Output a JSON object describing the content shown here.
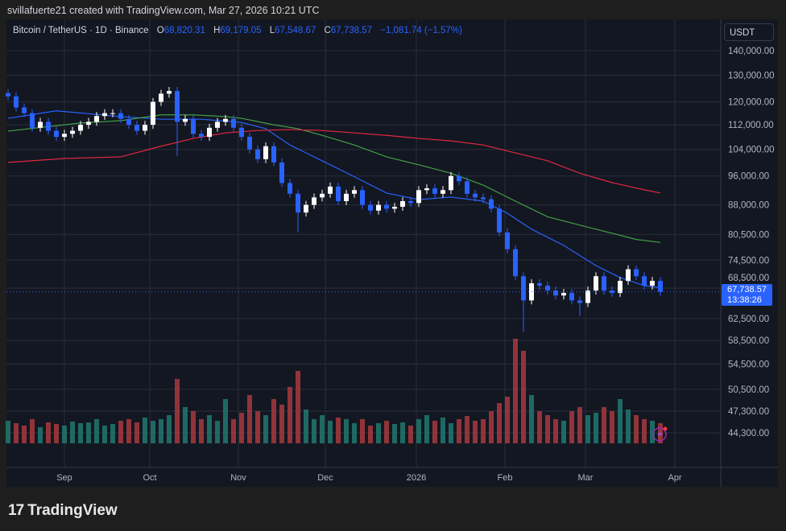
{
  "credit": "svillafuerte21 created with TradingView.com, Mar 27, 2026 10:21 UTC",
  "legend": {
    "symbol": "Bitcoin / TetherUS · 1D · Binance",
    "o_label": "O",
    "open": "68,820.31",
    "h_label": "H",
    "high": "69,179.05",
    "l_label": "L",
    "low": "67,548.67",
    "c_label": "C",
    "close": "67,738.57",
    "change": "−1,081.74 (−1.57%)"
  },
  "currency_button": "USDT",
  "last_price": {
    "price": "67,738.57",
    "countdown": "13:38:26",
    "value": 67738.57
  },
  "logo": {
    "mark": "17",
    "text": "TradingView"
  },
  "alert_icon": "lightning-icon",
  "colors": {
    "background": "#131722",
    "up_candle": "#ffffff",
    "down_candle": "#2962ff",
    "up_volume": "#22786f",
    "down_volume": "#a83a3d",
    "ma_blue": "#2962ff",
    "ma_green": "#43a047",
    "ma_red": "#e0283f",
    "axis_text": "#b2b5be",
    "grid": "#2a2e39"
  },
  "chart_data": {
    "type": "candlestick",
    "yscale": "log",
    "ylim": [
      42000,
      150000
    ],
    "grid": true,
    "y_ticks": [
      "140,000.00",
      "130,000.00",
      "120,000.00",
      "112,000.00",
      "104,000.00",
      "96,000.00",
      "88,000.00",
      "80,500.00",
      "74,500.00",
      "68,500.00",
      "62,500.00",
      "58,500.00",
      "54,500.00",
      "50,500.00",
      "47,300.00",
      "44,300.00"
    ],
    "y_tick_values": [
      140000,
      130000,
      120000,
      112000,
      104000,
      96000,
      88000,
      80500,
      74500,
      68500,
      62500,
      58500,
      54500,
      50500,
      47300,
      44300
    ],
    "x_ticks": [
      {
        "label": "Sep",
        "i": 7
      },
      {
        "label": "Oct",
        "i": 17.6
      },
      {
        "label": "Nov",
        "i": 28.6
      },
      {
        "label": "Dec",
        "i": 39.4
      },
      {
        "label": "2026",
        "i": 50.7
      },
      {
        "label": "Feb",
        "i": 61.7
      },
      {
        "label": "Mar",
        "i": 71.7
      },
      {
        "label": "Apr",
        "i": 82.8
      }
    ],
    "closes": [
      122000,
      118000,
      116000,
      111000,
      113000,
      110000,
      108000,
      109000,
      110000,
      112000,
      113000,
      115000,
      116000,
      116000,
      114000,
      112000,
      110000,
      112000,
      120000,
      123000,
      124000,
      113000,
      114000,
      109000,
      108000,
      111000,
      113000,
      114000,
      111000,
      108000,
      104000,
      101000,
      105000,
      100000,
      94000,
      91000,
      86000,
      88000,
      90000,
      91000,
      93000,
      89000,
      91000,
      92000,
      88000,
      86500,
      88000,
      87000,
      87500,
      89000,
      88500,
      92000,
      92500,
      91000,
      92000,
      96000,
      94500,
      91000,
      90000,
      89500,
      87000,
      81000,
      77000,
      71000,
      66000,
      69500,
      69000,
      68000,
      67000,
      67500,
      66000,
      65500,
      68000,
      71000,
      68000,
      67500,
      70000,
      72500,
      71000,
      69000,
      70000,
      67738.57
    ],
    "notable_lows": [
      {
        "i": 21,
        "low": 102000
      },
      {
        "i": 36,
        "low": 81000
      },
      {
        "i": 64,
        "low": 60000
      },
      {
        "i": 71,
        "low": 63000
      }
    ],
    "volume": [
      28,
      25,
      22,
      30,
      20,
      26,
      24,
      22,
      27,
      25,
      26,
      30,
      22,
      24,
      28,
      30,
      26,
      32,
      28,
      30,
      35,
      80,
      45,
      40,
      30,
      35,
      28,
      55,
      30,
      38,
      60,
      40,
      35,
      55,
      48,
      70,
      90,
      42,
      30,
      35,
      28,
      32,
      30,
      25,
      30,
      22,
      25,
      28,
      24,
      26,
      22,
      30,
      35,
      28,
      32,
      25,
      30,
      34,
      28,
      30,
      40,
      50,
      58,
      130,
      115,
      60,
      40,
      35,
      30,
      28,
      40,
      45,
      35,
      38,
      45,
      40,
      55,
      42,
      35,
      30,
      28,
      25
    ],
    "moving_averages": [
      {
        "color": "#2962ff",
        "points": [
          [
            0,
            114200
          ],
          [
            6,
            116800
          ],
          [
            14,
            114800
          ],
          [
            19,
            113900
          ],
          [
            24,
            113900
          ],
          [
            29,
            112800
          ],
          [
            32,
            110700
          ],
          [
            35,
            105400
          ],
          [
            39,
            100500
          ],
          [
            43,
            95800
          ],
          [
            47,
            91200
          ],
          [
            51,
            89400
          ],
          [
            55,
            90100
          ],
          [
            59,
            89000
          ],
          [
            62,
            85800
          ],
          [
            65,
            81800
          ],
          [
            69,
            77900
          ],
          [
            73,
            73300
          ],
          [
            76,
            70700
          ],
          [
            79,
            69000
          ],
          [
            81,
            68600
          ]
        ]
      },
      {
        "color": "#43a047",
        "points": [
          [
            0,
            109900
          ],
          [
            9,
            112600
          ],
          [
            14,
            113400
          ],
          [
            19,
            115400
          ],
          [
            23,
            115400
          ],
          [
            27,
            114800
          ],
          [
            29,
            114200
          ],
          [
            33,
            112000
          ],
          [
            36,
            110700
          ],
          [
            39,
            108500
          ],
          [
            43,
            105400
          ],
          [
            47,
            101700
          ],
          [
            51,
            99300
          ],
          [
            55,
            96800
          ],
          [
            59,
            93400
          ],
          [
            63,
            89000
          ],
          [
            67,
            84900
          ],
          [
            71,
            82800
          ],
          [
            75,
            80800
          ],
          [
            78,
            79300
          ],
          [
            81,
            78600
          ]
        ]
      },
      {
        "color": "#e0283f",
        "points": [
          [
            0,
            100000
          ],
          [
            7,
            101200
          ],
          [
            14,
            101700
          ],
          [
            19,
            105000
          ],
          [
            23,
            107500
          ],
          [
            27,
            109300
          ],
          [
            31,
            110100
          ],
          [
            35,
            110400
          ],
          [
            39,
            110100
          ],
          [
            43,
            109300
          ],
          [
            47,
            108500
          ],
          [
            51,
            107500
          ],
          [
            55,
            106700
          ],
          [
            59,
            105400
          ],
          [
            63,
            102900
          ],
          [
            67,
            100500
          ],
          [
            71,
            96800
          ],
          [
            75,
            94100
          ],
          [
            79,
            92100
          ],
          [
            81,
            91200
          ]
        ]
      }
    ]
  }
}
